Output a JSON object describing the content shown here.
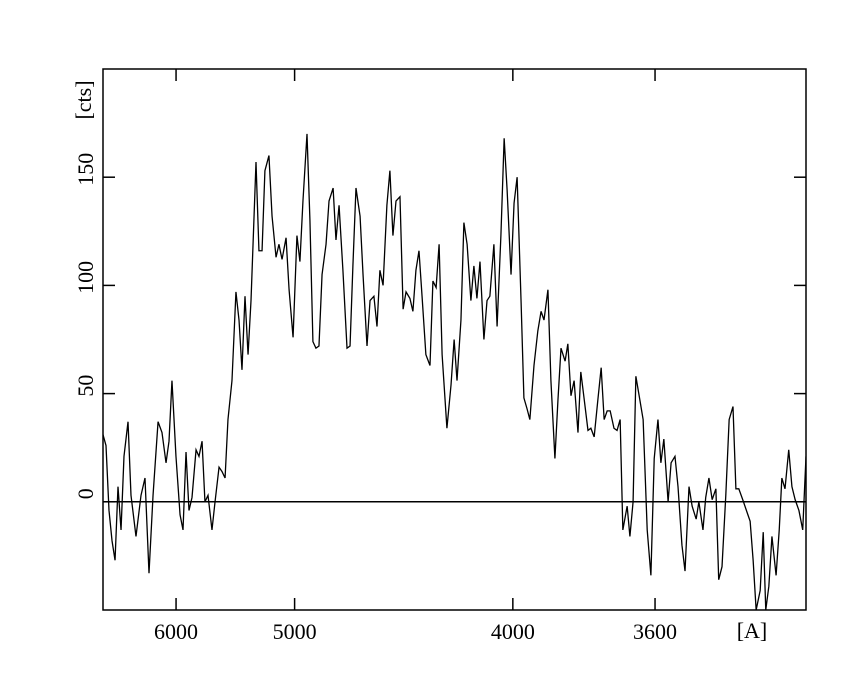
{
  "chart_data": {
    "type": "line",
    "xlabel": "[A]",
    "ylabel": "[cts]",
    "color": "#000000",
    "xscale": "inverse-square",
    "hline": 0,
    "xlim": [
      7028,
      3284
    ],
    "xticks": [
      6000,
      5000,
      4000,
      3600
    ],
    "ylim": [
      -50,
      200
    ],
    "yticks": [
      0,
      50,
      100,
      150
    ],
    "x": [
      7028,
      6975,
      6923,
      6872,
      6822,
      6774,
      6726,
      6680,
      6619,
      6575,
      6503,
      6433,
      6379,
      6326,
      6274,
      6211,
      6163,
      6115,
      6080,
      6046,
      6001,
      5956,
      5924,
      5892,
      5861,
      5830,
      5789,
      5760,
      5730,
      5702,
      5673,
      5636,
      5608,
      5572,
      5546,
      5519,
      5494,
      5460,
      5427,
      5402,
      5378,
      5354,
      5330,
      5307,
      5269,
      5247,
      5224,
      5203,
      5174,
      5152,
      5124,
      5104,
      5083,
      5056,
      5036,
      5010,
      4985,
      4966,
      4947,
      4922,
      4904,
      4886,
      4868,
      4850,
      4832,
      4809,
      4792,
      4769,
      4753,
      4736,
      4715,
      4693,
      4677,
      4662,
      4646,
      4625,
      4610,
      4590,
      4575,
      4556,
      4541,
      4527,
      4512,
      4494,
      4480,
      4466,
      4452,
      4434,
      4420,
      4407,
      4390,
      4377,
      4364,
      4351,
      4338,
      4322,
      4305,
      4293,
      4280,
      4268,
      4256,
      4237,
      4221,
      4209,
      4198,
      4183,
      4172,
      4160,
      4146,
      4135,
      4124,
      4113,
      4099,
      4088,
      4078,
      4064,
      4053,
      4040,
      4029,
      4019,
      4006,
      3996,
      3986,
      3973,
      3964,
      3954,
      3945,
      3932,
      3920,
      3910,
      3901,
      3889,
      3880,
      3868,
      3859,
      3850,
      3838,
      3830,
      3821,
      3812,
      3801,
      3793,
      3784,
      3773,
      3765,
      3756,
      3746,
      3737,
      3729,
      3721,
      3713,
      3703,
      3695,
      3687,
      3680,
      3669,
      3662,
      3654,
      3647,
      3637,
      3629,
      3619,
      3610,
      3602,
      3593,
      3586,
      3579,
      3569,
      3562,
      3553,
      3546,
      3537,
      3530,
      3521,
      3514,
      3505,
      3499,
      3490,
      3484,
      3477,
      3470,
      3462,
      3456,
      3449,
      3441,
      3434,
      3426,
      3420,
      3414,
      3406,
      3397,
      3391,
      3385,
      3379,
      3371,
      3365,
      3360,
      3354,
      3348,
      3340,
      3334,
      3329,
      3323,
      3316,
      3310,
      3304,
      3297,
      3290,
      3284
    ],
    "values": [
      31,
      26,
      -4,
      -18,
      -27,
      7,
      -13,
      21,
      37,
      3,
      -16,
      3,
      11,
      -33,
      3,
      37,
      32,
      18,
      28,
      56,
      21,
      -6,
      -13,
      23,
      -4,
      2,
      24,
      21,
      28,
      0,
      3,
      -13,
      0,
      16,
      14,
      11,
      38,
      56,
      97,
      84,
      61,
      95,
      68,
      93,
      157,
      116,
      116,
      153,
      160,
      132,
      113,
      119,
      112,
      122,
      98,
      76,
      123,
      111,
      139,
      170,
      130,
      74,
      71,
      72,
      105,
      119,
      139,
      145,
      121,
      137,
      107,
      71,
      72,
      109,
      145,
      132,
      105,
      72,
      93,
      95,
      81,
      107,
      100,
      137,
      153,
      123,
      139,
      141,
      89,
      97,
      94,
      88,
      107,
      116,
      95,
      68,
      63,
      102,
      99,
      119,
      68,
      34,
      54,
      75,
      56,
      84,
      129,
      119,
      93,
      109,
      94,
      111,
      75,
      93,
      95,
      119,
      81,
      123,
      168,
      144,
      105,
      138,
      150,
      92,
      48,
      43,
      38,
      63,
      79,
      88,
      84,
      98,
      56,
      20,
      47,
      71,
      65,
      73,
      49,
      56,
      32,
      60,
      48,
      33,
      34,
      30,
      47,
      62,
      38,
      42,
      42,
      34,
      33,
      38,
      -13,
      -2,
      -16,
      0,
      58,
      47,
      38,
      -13,
      -34,
      20,
      38,
      18,
      29,
      0,
      18,
      21,
      7,
      -20,
      -32,
      7,
      -2,
      -8,
      0,
      -13,
      2,
      11,
      1,
      6,
      -36,
      -30,
      3,
      38,
      44,
      6,
      6,
      1,
      -5,
      -9,
      -27,
      -50,
      -41,
      -14,
      -50,
      -39,
      -16,
      -34,
      -13,
      11,
      6,
      24,
      7,
      1,
      -4,
      -13,
      21
    ]
  }
}
